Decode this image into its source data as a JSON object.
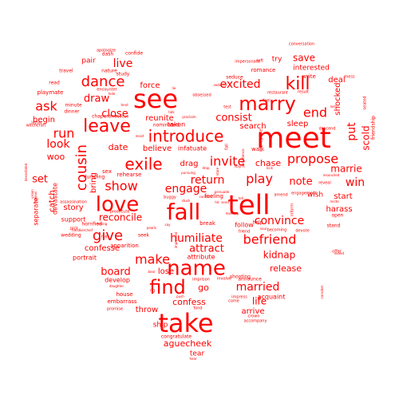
{
  "color": "#ff0000",
  "words": [
    {
      "text": "meet",
      "weight": 40
    },
    {
      "text": "take",
      "weight": 36
    },
    {
      "text": "tell",
      "weight": 38
    },
    {
      "text": "fall",
      "weight": 32
    },
    {
      "text": "see",
      "weight": 34
    },
    {
      "text": "name",
      "weight": 30
    },
    {
      "text": "find",
      "weight": 26
    },
    {
      "text": "love",
      "weight": 28
    },
    {
      "text": "introduce",
      "weight": 24
    },
    {
      "text": "marry",
      "weight": 24
    },
    {
      "text": "leave",
      "weight": 22
    },
    {
      "text": "kill",
      "weight": 22
    },
    {
      "text": "dance",
      "weight": 19
    },
    {
      "text": "cousin",
      "weight": 19
    },
    {
      "text": "exile",
      "weight": 19
    },
    {
      "text": "give",
      "weight": 19
    },
    {
      "text": "show",
      "weight": 17
    },
    {
      "text": "invite",
      "weight": 17
    },
    {
      "text": "befriend",
      "weight": 17
    },
    {
      "text": "propose",
      "weight": 16
    },
    {
      "text": "end",
      "weight": 17
    },
    {
      "text": "play",
      "weight": 16
    },
    {
      "text": "excited",
      "weight": 15
    },
    {
      "text": "run",
      "weight": 16
    },
    {
      "text": "ask",
      "weight": 16
    },
    {
      "text": "make",
      "weight": 16
    },
    {
      "text": "humiliate",
      "weight": 14
    },
    {
      "text": "return",
      "weight": 14
    },
    {
      "text": "engage",
      "weight": 14
    },
    {
      "text": "convince",
      "weight": 14
    },
    {
      "text": "married",
      "weight": 14
    },
    {
      "text": "put",
      "weight": 14
    },
    {
      "text": "win",
      "weight": 14
    },
    {
      "text": "look",
      "weight": 13
    },
    {
      "text": "live",
      "weight": 14
    },
    {
      "text": "close",
      "weight": 13
    },
    {
      "text": "draw",
      "weight": 12
    },
    {
      "text": "consist",
      "weight": 13
    },
    {
      "text": "marrie",
      "weight": 12
    },
    {
      "text": "note",
      "weight": 13
    },
    {
      "text": "set",
      "weight": 13
    },
    {
      "text": "board",
      "weight": 13
    },
    {
      "text": "scold",
      "weight": 12
    },
    {
      "text": "kidnap",
      "weight": 12
    },
    {
      "text": "save",
      "weight": 12
    },
    {
      "text": "life",
      "weight": 12
    },
    {
      "text": "attract",
      "weight": 12
    },
    {
      "text": "reconcile",
      "weight": 12
    },
    {
      "text": "release",
      "weight": 11
    },
    {
      "text": "confess",
      "weight": 11
    },
    {
      "text": "aguecheek",
      "weight": 11
    },
    {
      "text": "date",
      "weight": 11
    },
    {
      "text": "chase",
      "weight": 11
    },
    {
      "text": "woo",
      "weight": 11
    },
    {
      "text": "go",
      "weight": 11
    },
    {
      "text": "confesse",
      "weight": 10
    },
    {
      "text": "sleep",
      "weight": 10
    },
    {
      "text": "search",
      "weight": 10
    },
    {
      "text": "shocked",
      "weight": 10
    },
    {
      "text": "begin",
      "weight": 10
    },
    {
      "text": "story",
      "weight": 10
    },
    {
      "text": "believe",
      "weight": 10
    },
    {
      "text": "deal",
      "weight": 10
    },
    {
      "text": "reunite",
      "weight": 10
    },
    {
      "text": "force",
      "weight": 10
    },
    {
      "text": "throw",
      "weight": 10
    },
    {
      "text": "drag",
      "weight": 10
    },
    {
      "text": "start",
      "weight": 10
    },
    {
      "text": "harass",
      "weight": 10
    },
    {
      "text": "lose",
      "weight": 10
    },
    {
      "text": "arrive",
      "weight": 10
    },
    {
      "text": "catch",
      "weight": 9
    },
    {
      "text": "bring",
      "weight": 9
    },
    {
      "text": "interested",
      "weight": 9
    },
    {
      "text": "try",
      "weight": 9
    },
    {
      "text": "wish",
      "weight": 9
    },
    {
      "text": "tear",
      "weight": 9
    },
    {
      "text": "ship",
      "weight": 9
    },
    {
      "text": "pair",
      "weight": 9
    },
    {
      "text": "follow",
      "weight": 8
    },
    {
      "text": "portrait",
      "weight": 8
    },
    {
      "text": "support",
      "weight": 8
    },
    {
      "text": "separate",
      "weight": 8
    },
    {
      "text": "devastate",
      "weight": 8
    },
    {
      "text": "attribute",
      "weight": 8
    },
    {
      "text": "infatuate",
      "weight": 8
    },
    {
      "text": "develop",
      "weight": 8
    },
    {
      "text": "taken",
      "weight": 8
    },
    {
      "text": "acquaint",
      "weight": 8
    },
    {
      "text": "house",
      "weight": 8
    },
    {
      "text": "embarrass",
      "weight": 7
    },
    {
      "text": "break",
      "weight": 7
    },
    {
      "text": "playmate",
      "weight": 7
    },
    {
      "text": "write",
      "weight": 7
    },
    {
      "text": "romance",
      "weight": 7
    },
    {
      "text": "walk",
      "weight": 7
    },
    {
      "text": "feeling",
      "weight": 7
    },
    {
      "text": "rehearse",
      "weight": 7
    },
    {
      "text": "apparition",
      "weight": 7
    },
    {
      "text": "confide",
      "weight": 6
    },
    {
      "text": "study",
      "weight": 6
    },
    {
      "text": "dash",
      "weight": 6
    },
    {
      "text": "nature",
      "weight": 6
    },
    {
      "text": "travel",
      "weight": 6
    },
    {
      "text": "read",
      "weight": 6
    },
    {
      "text": "minute",
      "weight": 6
    },
    {
      "text": "dinner",
      "weight": 6
    },
    {
      "text": "seduce",
      "weight": 6
    },
    {
      "text": "sex",
      "weight": 7
    },
    {
      "text": "stand",
      "weight": 6
    },
    {
      "text": "open",
      "weight": 6
    },
    {
      "text": "announce",
      "weight": 6
    },
    {
      "text": "seek",
      "weight": 6
    },
    {
      "text": "wedding",
      "weight": 6
    },
    {
      "text": "horrified",
      "weight": 6
    },
    {
      "text": "congratulate",
      "weight": 6
    },
    {
      "text": "nominated",
      "weight": 6
    },
    {
      "text": "dumping",
      "weight": 6
    },
    {
      "text": "chaperone",
      "weight": 5
    },
    {
      "text": "friendship",
      "weight": 6
    },
    {
      "text": "shooting",
      "weight": 5
    },
    {
      "text": "amend",
      "weight": 5
    },
    {
      "text": "engagement",
      "weight": 5
    },
    {
      "text": "apologize",
      "weight": 5
    },
    {
      "text": "witchcraft",
      "weight": 5
    },
    {
      "text": "encounter",
      "weight": 5
    },
    {
      "text": "left",
      "weight": 5
    },
    {
      "text": "conversation",
      "weight": 5
    },
    {
      "text": "feel",
      "weight": 5
    },
    {
      "text": "restaurant",
      "weight": 5
    },
    {
      "text": "result",
      "weight": 5
    },
    {
      "text": "imprison",
      "weight": 5
    },
    {
      "text": "inform",
      "weight": 5
    },
    {
      "text": "impregnate",
      "weight": 5
    },
    {
      "text": "promise",
      "weight": 5
    },
    {
      "text": "rig",
      "weight": 5
    },
    {
      "text": "fond",
      "weight": 5
    },
    {
      "text": "crown",
      "weight": 5
    },
    {
      "text": "fall",
      "weight": 5
    },
    {
      "text": "pick",
      "weight": 5
    },
    {
      "text": "obsessed",
      "weight": 5
    },
    {
      "text": "descend",
      "weight": 5
    },
    {
      "text": "mess",
      "weight": 5
    },
    {
      "text": "reveal",
      "weight": 5
    },
    {
      "text": "impersonate",
      "weight": 4
    },
    {
      "text": "prosecute",
      "weight": 4
    },
    {
      "text": "assassination",
      "weight": 4
    },
    {
      "text": "letter",
      "weight": 4
    },
    {
      "text": "test",
      "weight": 5
    },
    {
      "text": "seated",
      "weight": 5
    },
    {
      "text": "offer",
      "weight": 5
    },
    {
      "text": "impress",
      "weight": 5
    },
    {
      "text": "rescue",
      "weight": 4
    },
    {
      "text": "hide",
      "weight": 4
    },
    {
      "text": "hit",
      "weight": 4
    },
    {
      "text": "say",
      "weight": 5
    },
    {
      "text": "hiding",
      "weight": 5
    },
    {
      "text": "friend",
      "weight": 5
    },
    {
      "text": "becoming",
      "weight": 5
    },
    {
      "text": "devote",
      "weight": 4
    },
    {
      "text": "recite",
      "weight": 4
    },
    {
      "text": "exiled",
      "weight": 4
    },
    {
      "text": "accompany",
      "weight": 5
    },
    {
      "text": "come",
      "weight": 5
    },
    {
      "text": "involve",
      "weight": 5
    },
    {
      "text": "lash",
      "weight": 4
    },
    {
      "text": "reconciled",
      "weight": 4
    },
    {
      "text": "memory",
      "weight": 4
    },
    {
      "text": "push",
      "weight": 4
    },
    {
      "text": "hear",
      "weight": 4
    },
    {
      "text": "daughter",
      "weight": 4
    },
    {
      "text": "bear",
      "weight": 4
    },
    {
      "text": "devastated",
      "weight": 4
    },
    {
      "text": "jealous",
      "weight": 4
    },
    {
      "text": "vision",
      "weight": 4
    },
    {
      "text": "lie",
      "weight": 4
    },
    {
      "text": "resist",
      "weight": 4
    },
    {
      "text": "buggy",
      "weight": 4
    },
    {
      "text": "stuck",
      "weight": 5
    },
    {
      "text": "confront",
      "weight": 4
    },
    {
      "text": "pursuing",
      "weight": 4
    },
    {
      "text": "talk",
      "weight": 4
    },
    {
      "text": "proclaim",
      "weight": 4
    },
    {
      "text": "seduced",
      "weight": 4
    },
    {
      "text": "stare",
      "weight": 4
    },
    {
      "text": "persuade",
      "weight": 4
    },
    {
      "text": "soul",
      "weight": 4
    },
    {
      "text": "consider",
      "weight": 4
    },
    {
      "text": "persistence",
      "weight": 4
    },
    {
      "text": "tend",
      "weight": 4
    },
    {
      "text": "help",
      "weight": 6
    },
    {
      "text": "stay",
      "weight": 4
    },
    {
      "text": "kick",
      "weight": 4
    },
    {
      "text": "send",
      "weight": 4
    },
    {
      "text": "drop",
      "weight": 4
    },
    {
      "text": "tell",
      "weight": 4
    },
    {
      "text": "impressed",
      "weight": 4
    },
    {
      "text": "pearls",
      "weight": 4
    },
    {
      "text": "felt",
      "weight": 5
    },
    {
      "text": "handkerchief",
      "weight": 4
    }
  ]
}
